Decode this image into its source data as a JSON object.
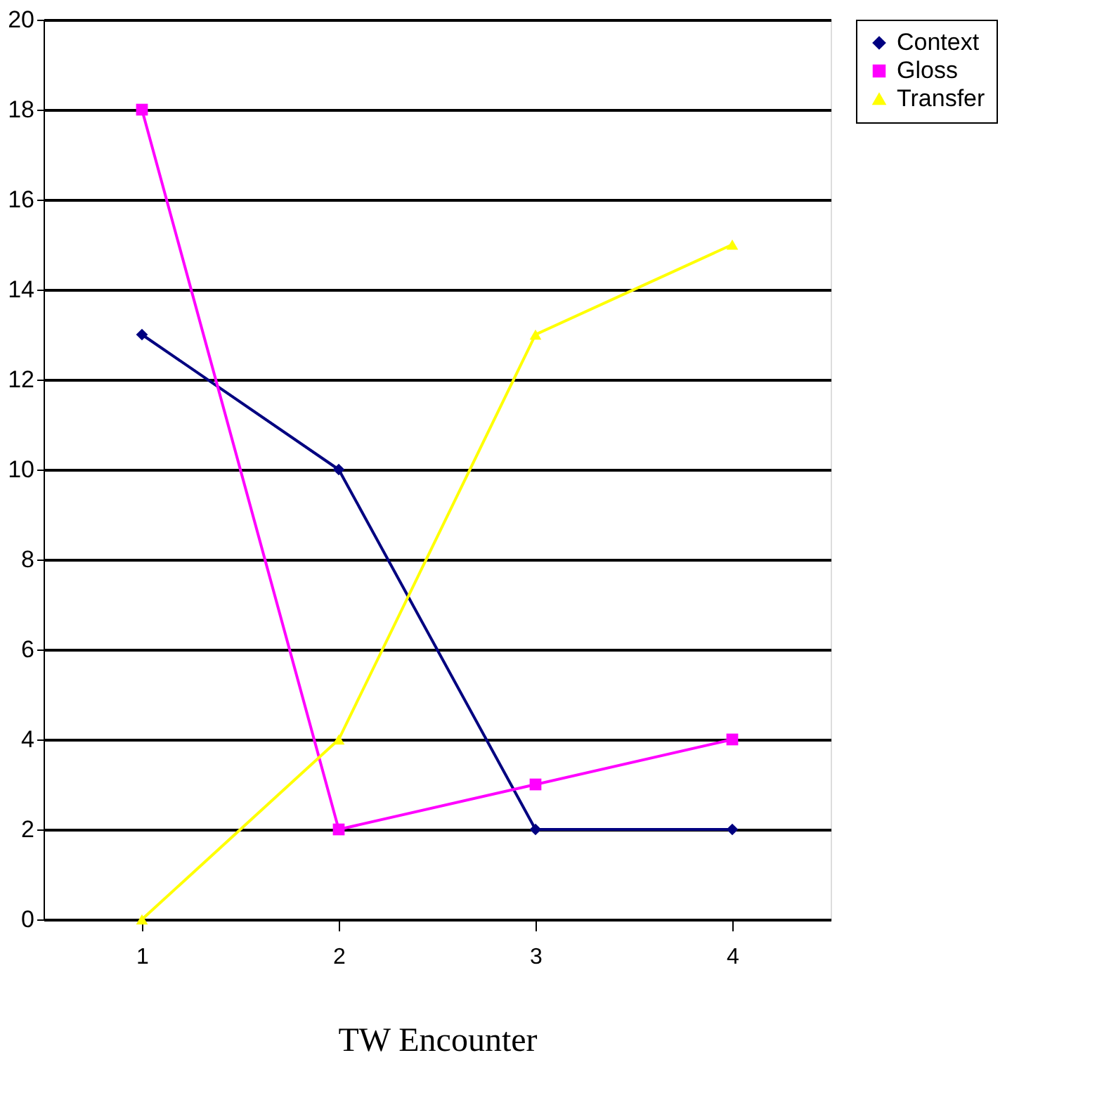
{
  "chart_data": {
    "type": "line",
    "xlabel": "TW Encounter",
    "categories": [
      "1",
      "2",
      "3",
      "4"
    ],
    "ylim": [
      0,
      20
    ],
    "yticks": [
      0,
      2,
      4,
      6,
      8,
      10,
      12,
      14,
      16,
      18,
      20
    ],
    "grid": "y",
    "legend": "right",
    "line_style": "solid",
    "series": [
      {
        "name": "Context",
        "color": "#000080",
        "values": [
          13,
          10,
          2,
          2
        ],
        "marker": "diamond"
      },
      {
        "name": "Gloss",
        "color": "#ff00ff",
        "values": [
          18,
          2,
          3,
          4
        ],
        "marker": "square"
      },
      {
        "name": "Transfer",
        "color": "#ffff00",
        "values": [
          0,
          4,
          13,
          15
        ],
        "marker": "triangle"
      }
    ]
  }
}
